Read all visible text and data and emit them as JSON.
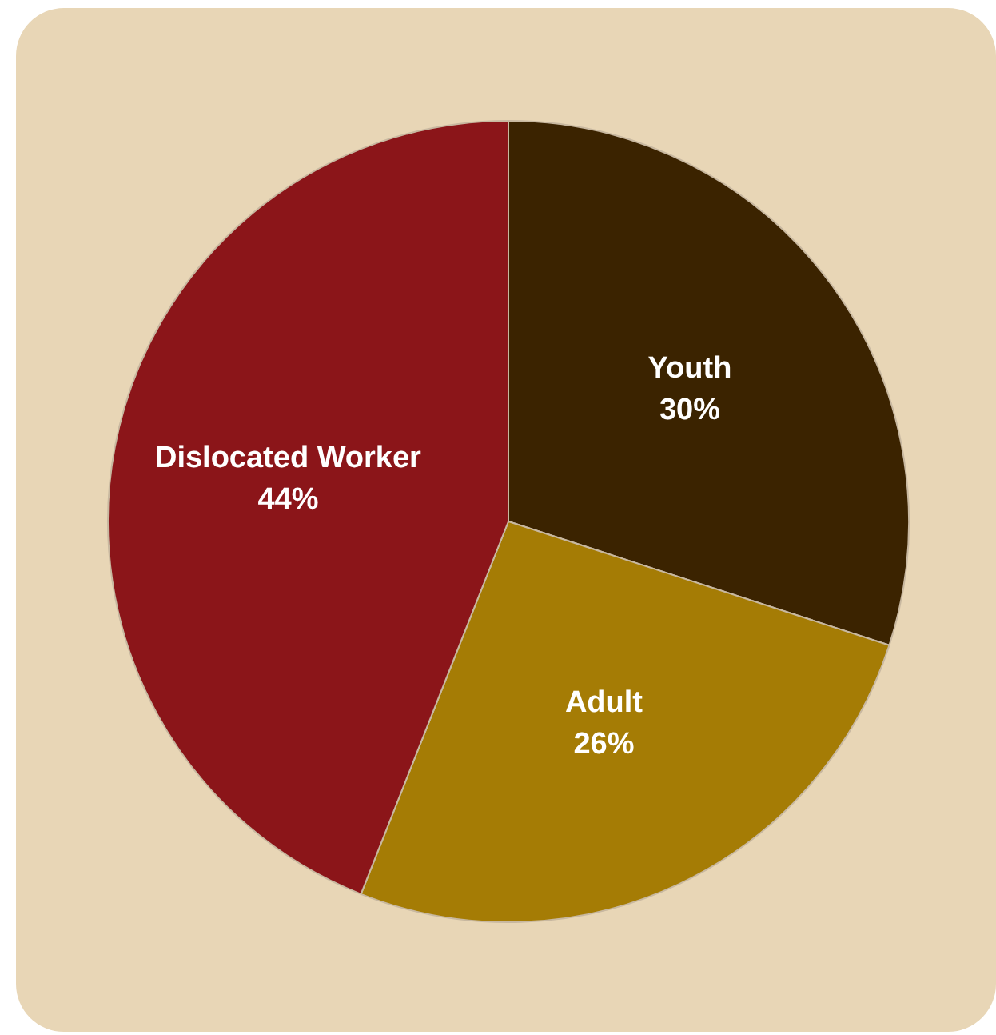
{
  "chart_data": {
    "type": "pie",
    "categories": [
      "Youth",
      "Adult",
      "Dislocated Worker"
    ],
    "values": [
      30,
      26,
      44
    ],
    "colors": [
      "#3b2300",
      "#a57c05",
      "#8b1519"
    ],
    "value_labels": [
      "30%",
      "26%",
      "44%"
    ],
    "legend": false
  }
}
